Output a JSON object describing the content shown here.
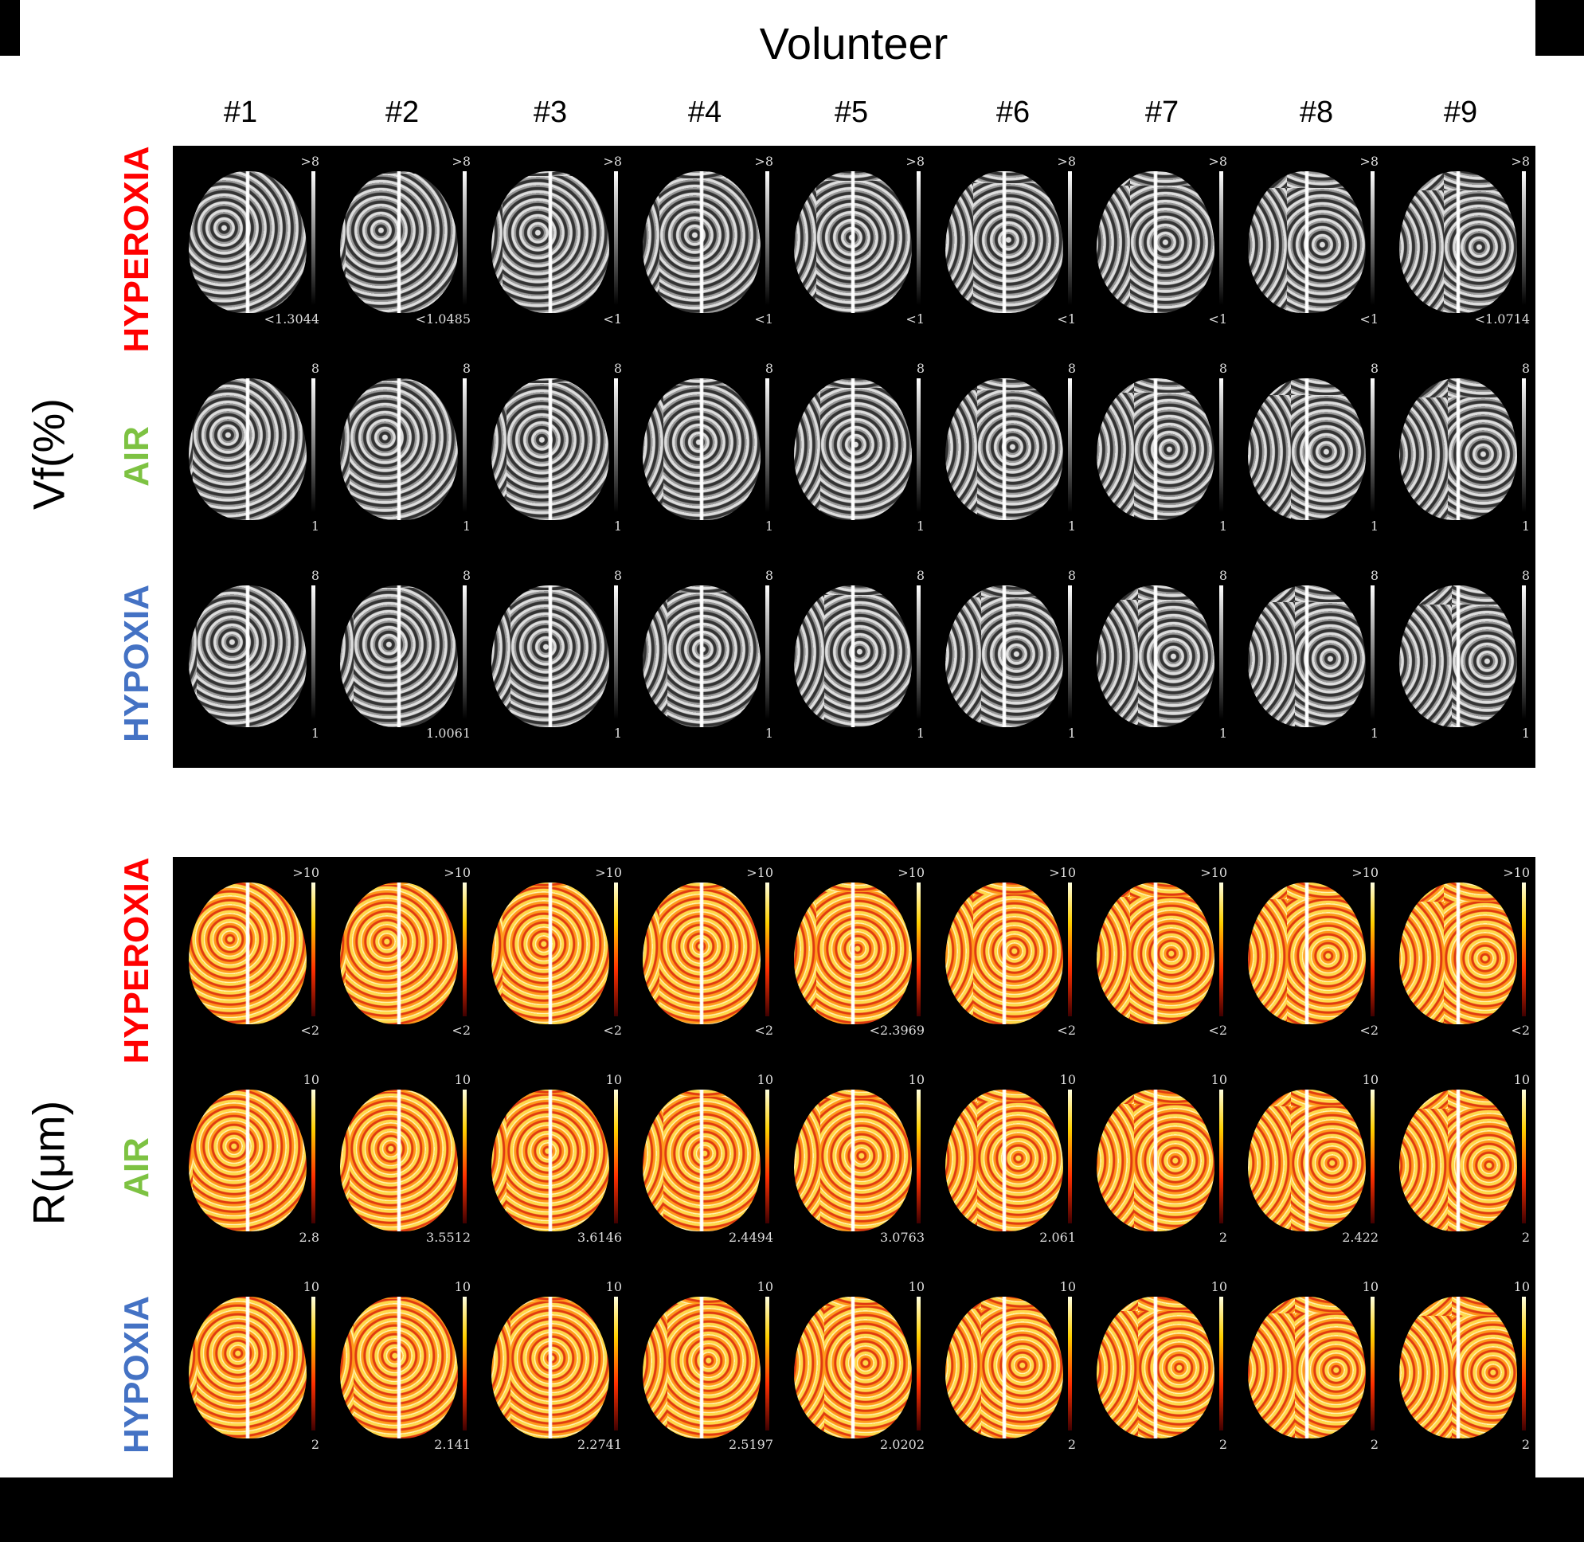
{
  "title": "Volunteer",
  "columns": [
    "#1",
    "#2",
    "#3",
    "#4",
    "#5",
    "#6",
    "#7",
    "#8",
    "#9"
  ],
  "conditions": [
    {
      "label": "HYPEROXIA",
      "color": "#ff0000"
    },
    {
      "label": "AIR",
      "color": "#7dc242"
    },
    {
      "label": "HYPOXIA",
      "color": "#4472c4"
    }
  ],
  "panels": [
    {
      "axis_label": "Vf(%)",
      "colormap": "gray",
      "rows": [
        {
          "top": [
            ">8",
            ">8",
            ">8",
            ">8",
            ">8",
            ">8",
            ">8",
            ">8",
            ">8"
          ],
          "bottom": [
            "<1.3044",
            "<1.0485",
            "<1",
            "<1",
            "<1",
            "<1",
            "<1",
            "<1",
            "<1.0714"
          ]
        },
        {
          "top": [
            "8",
            "8",
            "8",
            "8",
            "8",
            "8",
            "8",
            "8",
            "8"
          ],
          "bottom": [
            "1",
            "1",
            "1",
            "1",
            "1",
            "1",
            "1",
            "1",
            "1"
          ]
        },
        {
          "top": [
            "8",
            "8",
            "8",
            "8",
            "8",
            "8",
            "8",
            "8",
            "8"
          ],
          "bottom": [
            "1",
            "1.0061",
            "1",
            "1",
            "1",
            "1",
            "1",
            "1",
            "1"
          ]
        }
      ]
    },
    {
      "axis_label": "R(μm)",
      "colormap": "hot",
      "rows": [
        {
          "top": [
            ">10",
            ">10",
            ">10",
            ">10",
            ">10",
            ">10",
            ">10",
            ">10",
            ">10"
          ],
          "bottom": [
            "<2",
            "<2",
            "<2",
            "<2",
            "<2.3969",
            "<2",
            "<2",
            "<2",
            "<2"
          ]
        },
        {
          "top": [
            "10",
            "10",
            "10",
            "10",
            "10",
            "10",
            "10",
            "10",
            "10"
          ],
          "bottom": [
            "2.8",
            "3.5512",
            "3.6146",
            "2.4494",
            "3.0763",
            "2.061",
            "2",
            "2.422",
            "2"
          ]
        },
        {
          "top": [
            "10",
            "10",
            "10",
            "10",
            "10",
            "10",
            "10",
            "10",
            "10"
          ],
          "bottom": [
            "2",
            "2.141",
            "2.2741",
            "2.5197",
            "2.0202",
            "2",
            "2",
            "2",
            "2"
          ]
        }
      ]
    }
  ]
}
